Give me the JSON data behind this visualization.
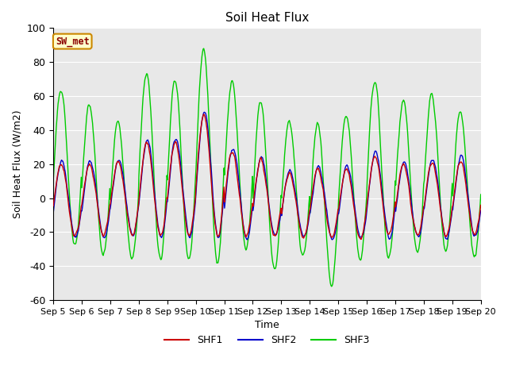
{
  "title": "Soil Heat Flux",
  "ylabel": "Soil Heat Flux (W/m2)",
  "xlabel": "Time",
  "ylim": [
    -60,
    100
  ],
  "bg_color": "#e8e8e8",
  "line_colors": {
    "SHF1": "#cc0000",
    "SHF2": "#0000cc",
    "SHF3": "#00cc00"
  },
  "annotation_text": "SW_met",
  "annotation_bg": "#ffffcc",
  "annotation_border": "#cc8800",
  "xtick_labels": [
    "Sep 5",
    "Sep 6",
    "Sep 7",
    "Sep 8",
    "Sep 9",
    "Sep 10",
    "Sep 11",
    "Sep 12",
    "Sep 13",
    "Sep 14",
    "Sep 15",
    "Sep 16",
    "Sep 17",
    "Sep 18",
    "Sep 19",
    "Sep 20"
  ],
  "ytick_labels": [
    -60,
    -40,
    -20,
    0,
    20,
    40,
    60,
    80,
    100
  ],
  "num_days": 15,
  "pts_per_day": 48,
  "shf3_day_peaks": [
    63,
    55,
    45,
    74,
    70,
    87,
    69,
    57,
    45,
    44,
    49,
    70,
    58,
    61,
    51
  ],
  "shf3_day_troughs": [
    -28,
    -33,
    -36,
    -36,
    -36,
    -37,
    -30,
    -42,
    -34,
    -50,
    -36,
    -36,
    -32,
    -32,
    -35
  ],
  "shf12_day_peaks": [
    20,
    20,
    21,
    32,
    33,
    49,
    27,
    22,
    14,
    17,
    17,
    25,
    19,
    21,
    22
  ],
  "shf12_day_troughs": [
    -22,
    -22,
    -21,
    -22,
    -22,
    -22,
    -22,
    -22,
    -22,
    -23,
    -23,
    -22,
    -22,
    -22,
    -22
  ]
}
